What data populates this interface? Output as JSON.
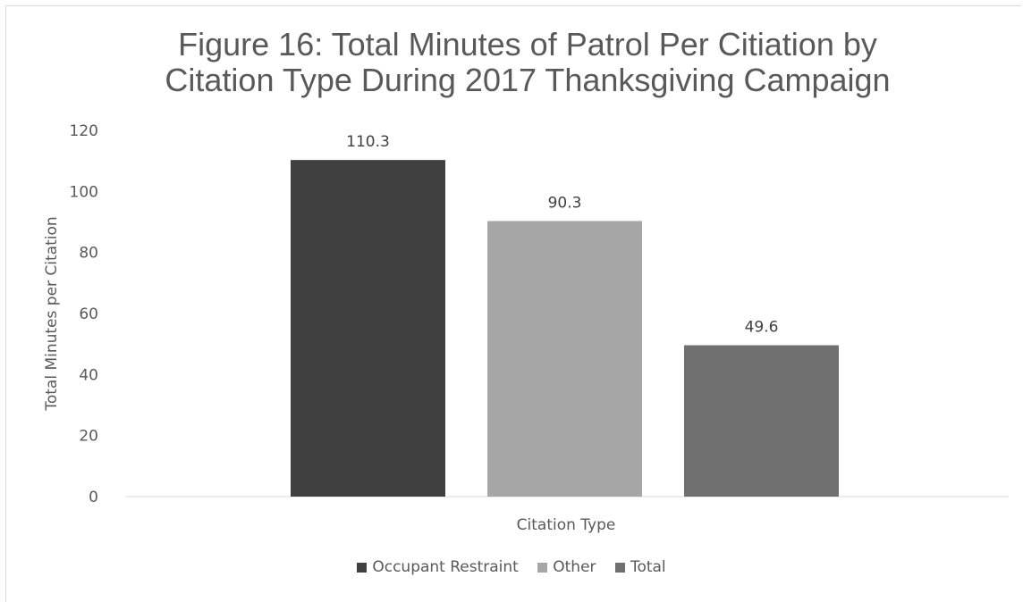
{
  "chart_data": {
    "type": "bar",
    "title_lines": [
      "Figure 16: Total Minutes of Patrol Per Citiation by",
      "Citation Type During 2017 Thanksgiving Campaign"
    ],
    "xlabel": "Citation Type",
    "ylabel": "Total Minutes per Citation",
    "ylim": [
      0,
      120
    ],
    "yticks": [
      "0",
      "20",
      "40",
      "60",
      "80",
      "100",
      "120"
    ],
    "grid": false,
    "legend_position": "bottom",
    "series": [
      {
        "name": "Occupant Restraint",
        "values": [
          110.3
        ],
        "labels": [
          "110.3"
        ],
        "color": "#404040"
      },
      {
        "name": "Other",
        "values": [
          90.3
        ],
        "labels": [
          "90.3"
        ],
        "color": "#a6a6a6"
      },
      {
        "name": "Total",
        "values": [
          49.6
        ],
        "labels": [
          "49.6"
        ],
        "color": "#707070"
      }
    ]
  }
}
